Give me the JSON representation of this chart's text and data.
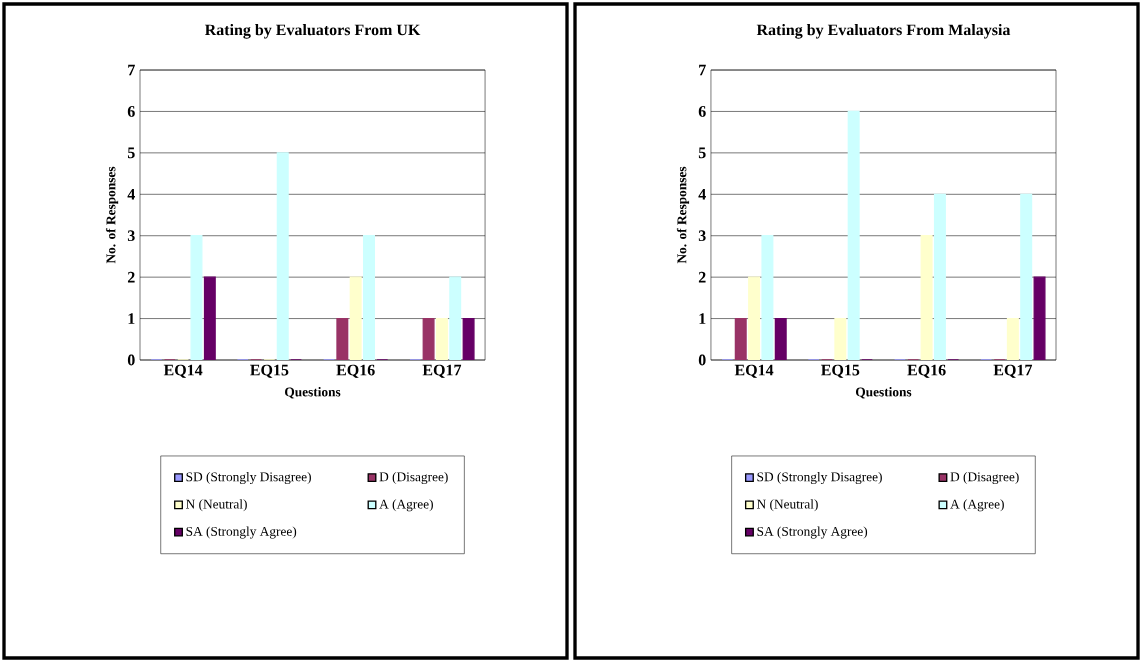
{
  "chart_data": [
    {
      "type": "bar",
      "title": "Rating by Evaluators From UK",
      "xlabel": "Questions",
      "ylabel": "No. of Responses",
      "categories": [
        "EQ14",
        "EQ15",
        "EQ16",
        "EQ17"
      ],
      "ylim": [
        0,
        7
      ],
      "yticks": [
        0,
        1,
        2,
        3,
        4,
        5,
        6,
        7
      ],
      "grid": "y",
      "legend": "bottom",
      "series": [
        {
          "name": "SD (Strongly Disagree)",
          "color": "#9999ff",
          "values": [
            0,
            0,
            0,
            0
          ]
        },
        {
          "name": "D (Disagree)",
          "color": "#993366",
          "values": [
            0,
            0,
            1,
            1
          ]
        },
        {
          "name": "N (Neutral)",
          "color": "#ffffcc",
          "values": [
            0,
            0,
            2,
            1
          ]
        },
        {
          "name": "A (Agree)",
          "color": "#ccffff",
          "values": [
            3,
            5,
            3,
            2
          ]
        },
        {
          "name": "SA (Strongly Agree)",
          "color": "#660066",
          "values": [
            2,
            0,
            0,
            1
          ]
        }
      ]
    },
    {
      "type": "bar",
      "title": "Rating by Evaluators From Malaysia",
      "xlabel": "Questions",
      "ylabel": "No. of Responses",
      "categories": [
        "EQ14",
        "EQ15",
        "EQ16",
        "EQ17"
      ],
      "ylim": [
        0,
        7
      ],
      "yticks": [
        0,
        1,
        2,
        3,
        4,
        5,
        6,
        7
      ],
      "grid": "y",
      "legend": "bottom",
      "series": [
        {
          "name": "SD (Strongly Disagree)",
          "color": "#9999ff",
          "values": [
            0,
            0,
            0,
            0
          ]
        },
        {
          "name": "D (Disagree)",
          "color": "#993366",
          "values": [
            1,
            0,
            0,
            0
          ]
        },
        {
          "name": "N (Neutral)",
          "color": "#ffffcc",
          "values": [
            2,
            1,
            3,
            1
          ]
        },
        {
          "name": "A (Agree)",
          "color": "#ccffff",
          "values": [
            3,
            6,
            4,
            4
          ]
        },
        {
          "name": "SA (Strongly Agree)",
          "color": "#660066",
          "values": [
            1,
            0,
            0,
            2
          ]
        }
      ]
    }
  ]
}
